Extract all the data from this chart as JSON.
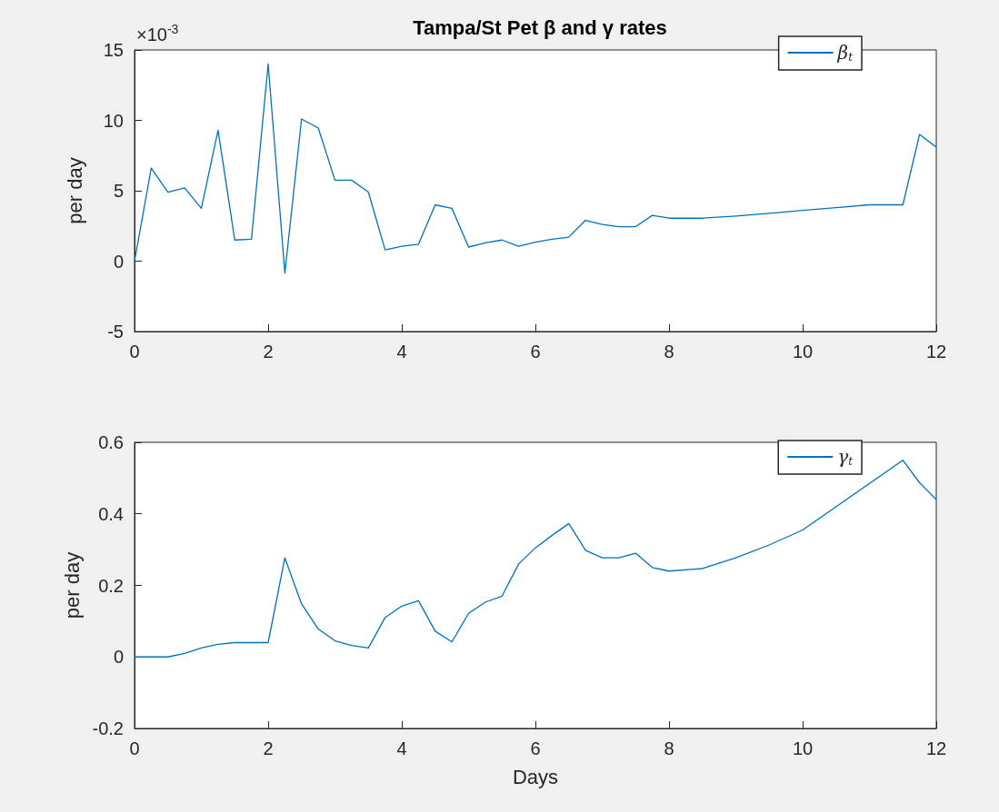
{
  "chart_data": [
    {
      "type": "line",
      "title": "Tampa/St Pet β and γ rates",
      "ylabel": "per day",
      "annotations": [
        "×10$^{-3}$"
      ],
      "series": [
        {
          "name": "β$_{t}$",
          "color": "#0072bd",
          "x": [
            0,
            0.25,
            0.5,
            0.75,
            1,
            1.25,
            1.5,
            1.75,
            2,
            2.25,
            2.5,
            2.75,
            3,
            3.25,
            3.5,
            3.75,
            4,
            4.25,
            4.5,
            4.75,
            5,
            5.25,
            5.5,
            5.75,
            6,
            6.25,
            6.5,
            6.75,
            7,
            7.25,
            7.5,
            7.75,
            8,
            8.5,
            9,
            9.5,
            10,
            10.5,
            11,
            11.5,
            11.75,
            12
          ],
          "values": [
            0,
            6.6,
            4.9,
            5.2,
            3.75,
            9.3,
            1.5,
            1.55,
            14,
            -0.85,
            10.1,
            9.45,
            5.75,
            5.75,
            4.9,
            0.8,
            1.05,
            1.2,
            4,
            3.75,
            1,
            1.3,
            1.5,
            1.05,
            1.35,
            1.55,
            1.7,
            2.9,
            2.6,
            2.45,
            2.45,
            3.25,
            3.05,
            3.05,
            3.2,
            3.4,
            3.6,
            3.8,
            4,
            4,
            9,
            8.1
          ]
        }
      ],
      "xlim": [
        0,
        12
      ],
      "xticks": [
        0,
        2,
        4,
        6,
        8,
        10,
        12
      ],
      "ylim": [
        -5,
        15
      ],
      "yticks": [
        -5,
        0,
        5,
        10,
        15
      ],
      "legend": "top right",
      "grid": false
    },
    {
      "type": "line",
      "xlabel": "Days",
      "ylabel": "per day",
      "series": [
        {
          "name": "γ$_{t}$",
          "color": "#0072bd",
          "x": [
            0,
            0.25,
            0.5,
            0.75,
            1,
            1.25,
            1.5,
            1.75,
            2,
            2.25,
            2.5,
            2.75,
            3,
            3.25,
            3.5,
            3.75,
            4,
            4.25,
            4.5,
            4.75,
            5,
            5.25,
            5.5,
            5.75,
            6,
            6.25,
            6.5,
            6.75,
            7,
            7.25,
            7.5,
            7.75,
            8,
            8.5,
            9,
            9.5,
            10,
            11.5,
            11.75,
            12
          ],
          "values": [
            0,
            0,
            0,
            0.01,
            0.025,
            0.035,
            0.04,
            0.04,
            0.04,
            0.277,
            0.148,
            0.078,
            0.045,
            0.032,
            0.025,
            0.11,
            0.142,
            0.157,
            0.072,
            0.042,
            0.122,
            0.153,
            0.17,
            0.26,
            0.305,
            0.34,
            0.373,
            0.298,
            0.277,
            0.277,
            0.29,
            0.25,
            0.24,
            0.247,
            0.277,
            0.313,
            0.355,
            0.55,
            0.487,
            0.44
          ]
        }
      ],
      "xlim": [
        0,
        12
      ],
      "xticks": [
        0,
        2,
        4,
        6,
        8,
        10,
        12
      ],
      "ylim": [
        -0.2,
        0.6
      ],
      "yticks": [
        -0.2,
        0,
        0.2,
        0.4,
        0.6
      ],
      "legend": "top right",
      "grid": false
    }
  ]
}
